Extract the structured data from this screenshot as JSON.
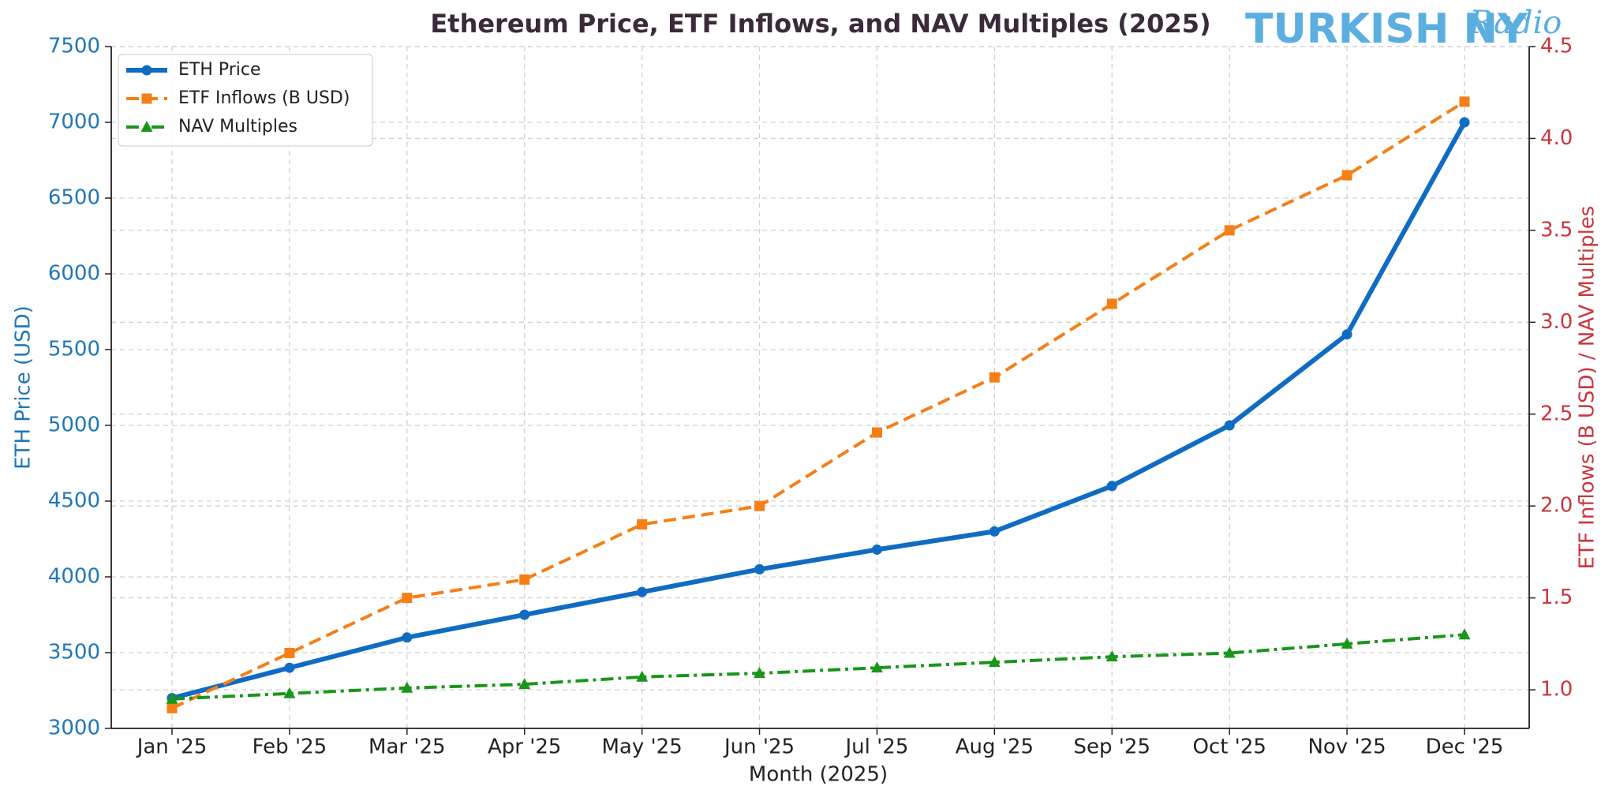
{
  "chart_data": {
    "type": "line",
    "title": "Ethereum Price, ETF Inflows, and NAV Multiples (2025)",
    "watermark": "TURKISH NY",
    "watermark_script": "Radio",
    "x_label": "Month (2025)",
    "y_label": "ETH Price (USD)",
    "y2_label": "ETF Inflows (B USD) / NAV Multiples",
    "y_label_color": "#1f77b4",
    "y2_label_color": "#c8363c",
    "categories": [
      "Jan '25",
      "Feb '25",
      "Mar '25",
      "Apr '25",
      "May '25",
      "Jun '25",
      "Jul '25",
      "Aug '25",
      "Sep '25",
      "Oct '25",
      "Nov '25",
      "Dec '25"
    ],
    "ylim": [
      3000,
      7500
    ],
    "yticks": [
      3000,
      3500,
      4000,
      4500,
      5000,
      5500,
      6000,
      6500,
      7000,
      7500
    ],
    "y2lim": [
      0.79,
      4.5
    ],
    "y2ticks": [
      {
        "value": 1.0,
        "label": "1.0"
      },
      {
        "value": 1.5,
        "label": "1.5"
      },
      {
        "value": 2.0,
        "label": "2.0"
      },
      {
        "value": 2.5,
        "label": "2.5"
      },
      {
        "value": 3.0,
        "label": "3.0"
      },
      {
        "value": 3.5,
        "label": "3.5"
      },
      {
        "value": 4.0,
        "label": "4.0"
      },
      {
        "value": 4.5,
        "label": "4.5"
      }
    ],
    "grid": true,
    "legend": "upper-left",
    "series": [
      {
        "name": "ETH Price",
        "color": "#0f6cc2",
        "marker": "circle",
        "linestyle": "solid",
        "values": [
          3200,
          3400,
          3600,
          3750,
          3900,
          4050,
          4180,
          4300,
          4600,
          5000,
          5600,
          7000
        ]
      },
      {
        "name": "ETF Inflows (B USD)",
        "color": "#f57f17",
        "marker": "square",
        "linestyle": "dashed",
        "axis": "y2",
        "values": [
          0.9,
          1.2,
          1.5,
          1.6,
          1.9,
          2.0,
          2.4,
          2.7,
          3.1,
          3.5,
          3.8,
          4.2
        ]
      },
      {
        "name": "NAV Multiples",
        "color": "#1a961a",
        "marker": "triangle",
        "linestyle": "dashdot",
        "axis": "y2",
        "values": [
          0.95,
          0.98,
          1.01,
          1.03,
          1.07,
          1.09,
          1.12,
          1.15,
          1.18,
          1.2,
          1.25,
          1.3
        ]
      }
    ]
  }
}
